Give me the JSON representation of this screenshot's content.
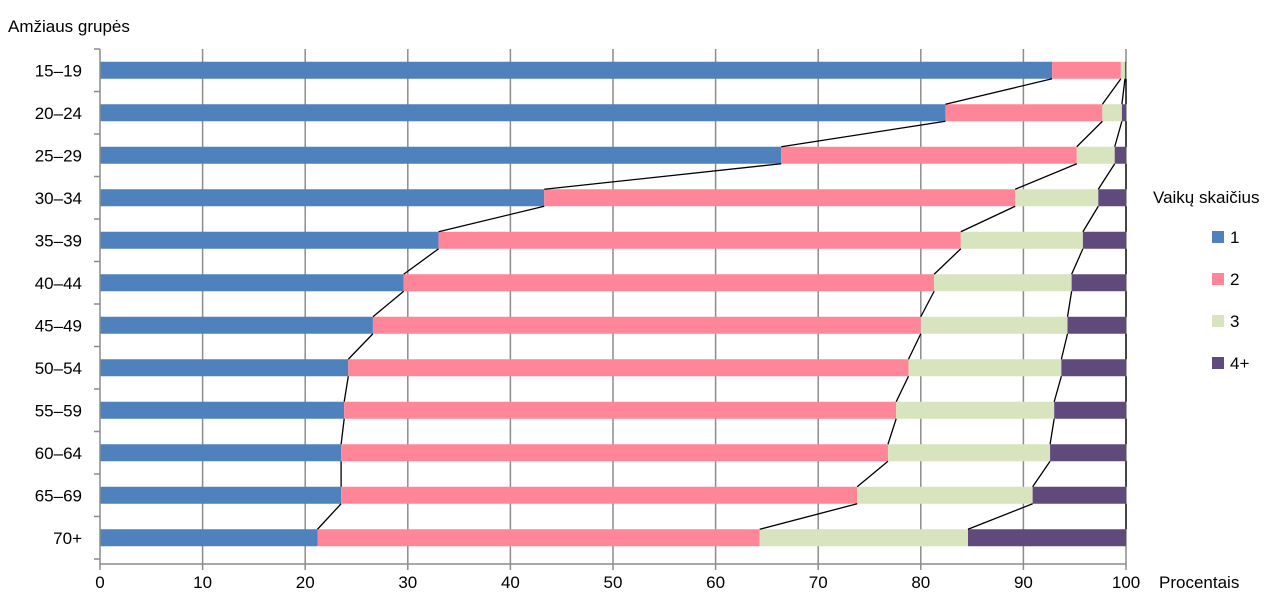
{
  "chart_data": {
    "type": "bar",
    "stacked": true,
    "orientation": "horizontal",
    "title": "",
    "ylabel": "Amžiaus grupės",
    "xlabel": "Procentais",
    "xlim": [
      0,
      100
    ],
    "x_ticks": [
      "0",
      "10",
      "20",
      "30",
      "40",
      "50",
      "60",
      "70",
      "80",
      "90",
      "100"
    ],
    "grid": true,
    "series_lines": true,
    "categories": [
      "15–19",
      "20–24",
      "25–29",
      "30–34",
      "35–39",
      "40–44",
      "45–49",
      "50–54",
      "55–59",
      "60–64",
      "65–69",
      "70+"
    ],
    "legend": {
      "title": "Vaikų skaičius",
      "placement": "right"
    },
    "series": [
      {
        "name": "1",
        "color": "#4f81bd",
        "values": [
          92.8,
          82.4,
          66.4,
          43.3,
          33.0,
          29.6,
          26.6,
          24.2,
          23.8,
          23.5,
          23.5,
          21.2
        ]
      },
      {
        "name": "2",
        "color": "#ff8599",
        "values": [
          6.7,
          15.3,
          28.8,
          45.9,
          50.9,
          51.7,
          53.4,
          54.6,
          53.8,
          53.3,
          50.3,
          43.1
        ]
      },
      {
        "name": "3",
        "color": "#d7e4bd",
        "values": [
          0.4,
          1.9,
          3.7,
          8.1,
          11.9,
          13.4,
          14.3,
          14.9,
          15.4,
          15.8,
          17.1,
          20.3
        ]
      },
      {
        "name": "4+",
        "color": "#604a7b",
        "values": [
          0.1,
          0.4,
          1.1,
          2.7,
          4.2,
          5.3,
          5.7,
          6.3,
          7.0,
          7.4,
          9.1,
          15.4
        ]
      }
    ]
  }
}
